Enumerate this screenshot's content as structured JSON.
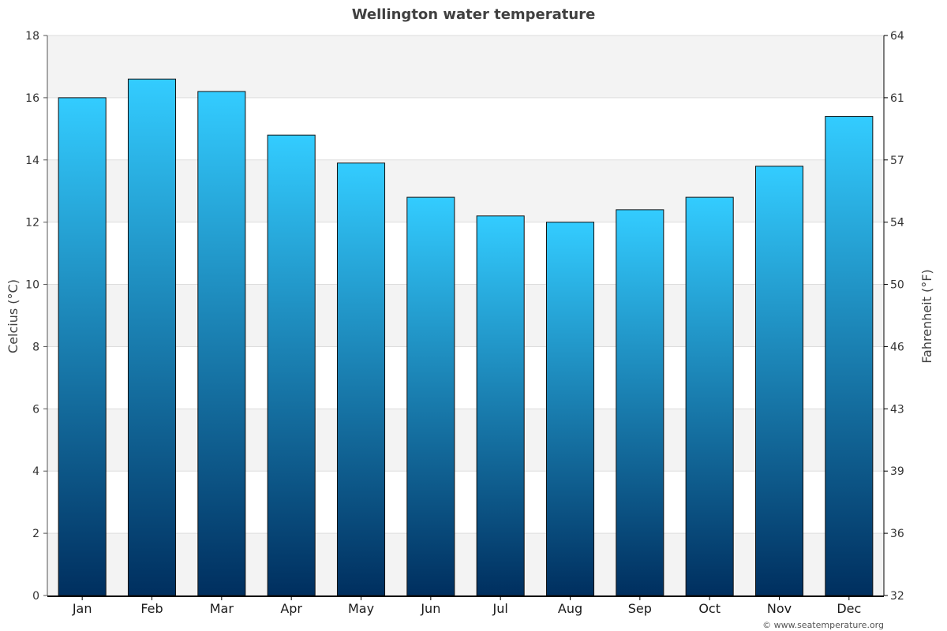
{
  "chart_data": {
    "type": "bar",
    "title": "Wellington water temperature",
    "categories": [
      "Jan",
      "Feb",
      "Mar",
      "Apr",
      "May",
      "Jun",
      "Jul",
      "Aug",
      "Sep",
      "Oct",
      "Nov",
      "Dec"
    ],
    "series": [
      {
        "values": [
          16.0,
          16.6,
          16.2,
          14.8,
          13.9,
          12.8,
          12.2,
          12.0,
          12.4,
          12.8,
          13.8,
          15.4
        ]
      }
    ],
    "ylabel": "Celcius (°C)",
    "ylabel_right": "Fahrenheit (°F)",
    "ylim": [
      0,
      18
    ],
    "yticks": [
      0,
      2,
      4,
      6,
      8,
      10,
      12,
      14,
      16,
      18
    ],
    "yticks_right": [
      "32",
      "36",
      "39",
      "43",
      "46",
      "50",
      "54",
      "57",
      "61",
      "64"
    ],
    "grid": true,
    "legend": "none",
    "colors": {
      "bar_top": "#33ccff",
      "bar_bottom": "#002f5f",
      "bar_border": "#111111",
      "band": "#f3f3f3",
      "gridline": "#dddddd",
      "axis": "#000000"
    }
  },
  "credit": "© www.seatemperature.org"
}
